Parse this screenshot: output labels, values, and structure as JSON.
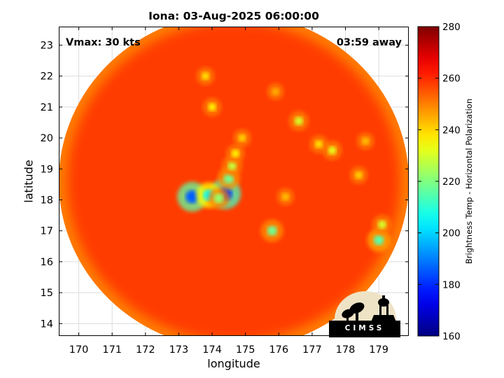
{
  "chart_data": {
    "type": "heatmap",
    "title": "Iona: 03-Aug-2025 06:00:00",
    "xlabel": "longitude",
    "ylabel": "latitude",
    "xlim": [
      169.4,
      179.9
    ],
    "ylim": [
      13.6,
      23.6
    ],
    "x_ticks": [
      170,
      171,
      172,
      173,
      174,
      175,
      176,
      177,
      178,
      179
    ],
    "y_ticks": [
      14,
      15,
      16,
      17,
      18,
      19,
      20,
      21,
      22,
      23
    ],
    "grid": true,
    "annotations": {
      "vmax": "Vmax: 30 kts",
      "away": "03:59 away"
    },
    "colorbar": {
      "label": "Brightness Temp - Horizontal Polarization",
      "range": [
        160,
        280
      ],
      "ticks": [
        160,
        180,
        200,
        220,
        240,
        260,
        280
      ],
      "colormap": "jet"
    },
    "background_temp": 258,
    "swath_edge_temp": 250,
    "features": [
      {
        "lon": 174.4,
        "lat": 18.2,
        "temp": 182
      },
      {
        "lon": 173.4,
        "lat": 18.1,
        "temp": 186
      },
      {
        "lon": 173.9,
        "lat": 18.15,
        "temp": 205
      },
      {
        "lon": 174.2,
        "lat": 18.05,
        "temp": 222
      },
      {
        "lon": 174.5,
        "lat": 18.7,
        "temp": 218
      },
      {
        "lon": 174.6,
        "lat": 19.1,
        "temp": 228
      },
      {
        "lon": 174.7,
        "lat": 19.5,
        "temp": 236
      },
      {
        "lon": 175.8,
        "lat": 17.0,
        "temp": 218
      },
      {
        "lon": 176.6,
        "lat": 20.55,
        "temp": 230
      },
      {
        "lon": 177.6,
        "lat": 19.6,
        "temp": 232
      },
      {
        "lon": 177.2,
        "lat": 19.8,
        "temp": 238
      },
      {
        "lon": 178.4,
        "lat": 18.8,
        "temp": 240
      },
      {
        "lon": 179.0,
        "lat": 16.7,
        "temp": 215
      },
      {
        "lon": 179.1,
        "lat": 17.2,
        "temp": 230
      },
      {
        "lon": 174.0,
        "lat": 21.0,
        "temp": 236
      },
      {
        "lon": 173.8,
        "lat": 22.0,
        "temp": 238
      },
      {
        "lon": 174.9,
        "lat": 20.0,
        "temp": 240
      },
      {
        "lon": 175.9,
        "lat": 21.5,
        "temp": 244
      },
      {
        "lon": 178.6,
        "lat": 19.9,
        "temp": 242
      },
      {
        "lon": 176.2,
        "lat": 18.1,
        "temp": 242
      }
    ]
  },
  "logo": {
    "text": "CIMSS"
  }
}
